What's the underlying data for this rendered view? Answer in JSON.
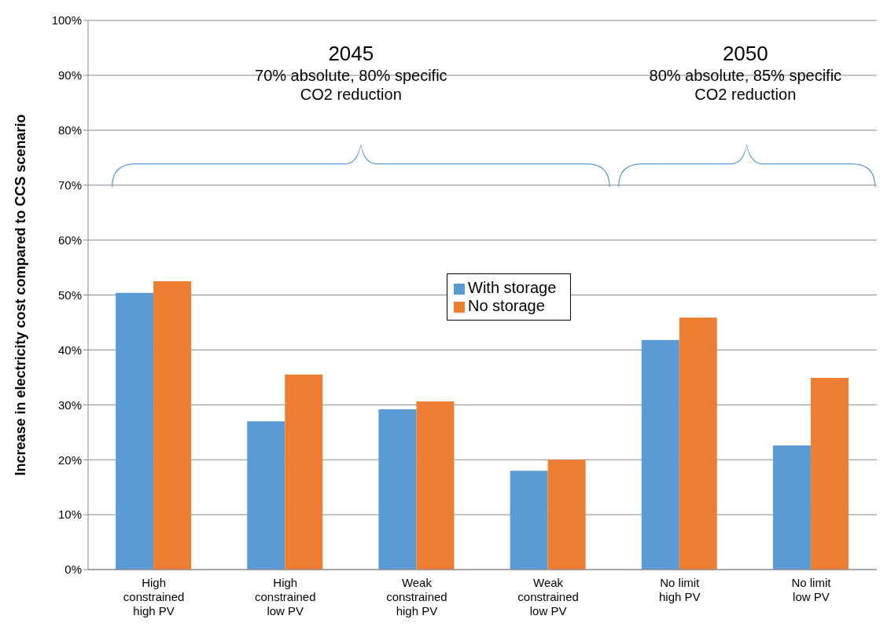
{
  "chart_data": {
    "type": "bar",
    "ylabel": "Increase in electricity cost compared to CCS scenario",
    "categories": [
      "High constrained high PV",
      "High constrained low PV",
      "Weak constrained high PV",
      "Weak constrained low PV",
      "No limit high PV",
      "No limit low PV"
    ],
    "series": [
      {
        "name": "With storage",
        "color": "#5b9bd5",
        "values": [
          50.4,
          27.0,
          29.2,
          18.0,
          41.8,
          22.6
        ]
      },
      {
        "name": "No storage",
        "color": "#ed7d31",
        "values": [
          52.5,
          35.5,
          30.6,
          20.0,
          45.9,
          34.9
        ]
      }
    ],
    "ylim": [
      0,
      100
    ],
    "yticks": [
      {
        "value": 0,
        "label": "0%"
      },
      {
        "value": 10,
        "label": "10%"
      },
      {
        "value": 20,
        "label": "20%"
      },
      {
        "value": 30,
        "label": "30%"
      },
      {
        "value": 40,
        "label": "40%"
      },
      {
        "value": 50,
        "label": "50%"
      },
      {
        "value": 60,
        "label": "60%"
      },
      {
        "value": 70,
        "label": "70%"
      },
      {
        "value": 80,
        "label": "80%"
      },
      {
        "value": 90,
        "label": "90%"
      },
      {
        "value": 100,
        "label": "100%"
      }
    ],
    "grid": "y",
    "legend": "center",
    "annotations": [
      "2045",
      "70% absolute, 80% specific CO2 reduction",
      "2050",
      "80% absolute, 85% specific CO2 reduction"
    ]
  }
}
